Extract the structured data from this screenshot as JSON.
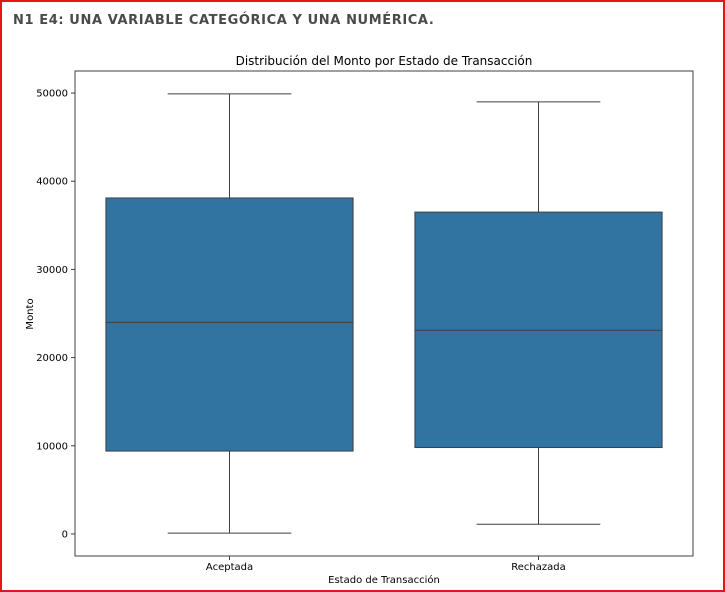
{
  "page": {
    "heading": "N1 E4: UNA VARIABLE CATEGÓRICA Y UNA NUMÉRICA."
  },
  "colors": {
    "frame_border": "#e8141b",
    "box_fill": "#3274a1",
    "line": "#3f3f3f"
  },
  "chart_data": {
    "type": "box",
    "title": "Distribución del Monto por Estado de Transacción",
    "xlabel": "Estado de Transacción",
    "ylabel": "Monto",
    "ylim": [
      -2500,
      52500
    ],
    "yticks": [
      0,
      10000,
      20000,
      30000,
      40000,
      50000
    ],
    "grid": false,
    "categories": [
      "Aceptada",
      "Rechazada"
    ],
    "boxes": [
      {
        "category": "Aceptada",
        "min": 100,
        "q1": 9400,
        "median": 24000,
        "q3": 38100,
        "max": 49900
      },
      {
        "category": "Rechazada",
        "min": 1100,
        "q1": 9800,
        "median": 23100,
        "q3": 36500,
        "max": 49000
      }
    ]
  }
}
